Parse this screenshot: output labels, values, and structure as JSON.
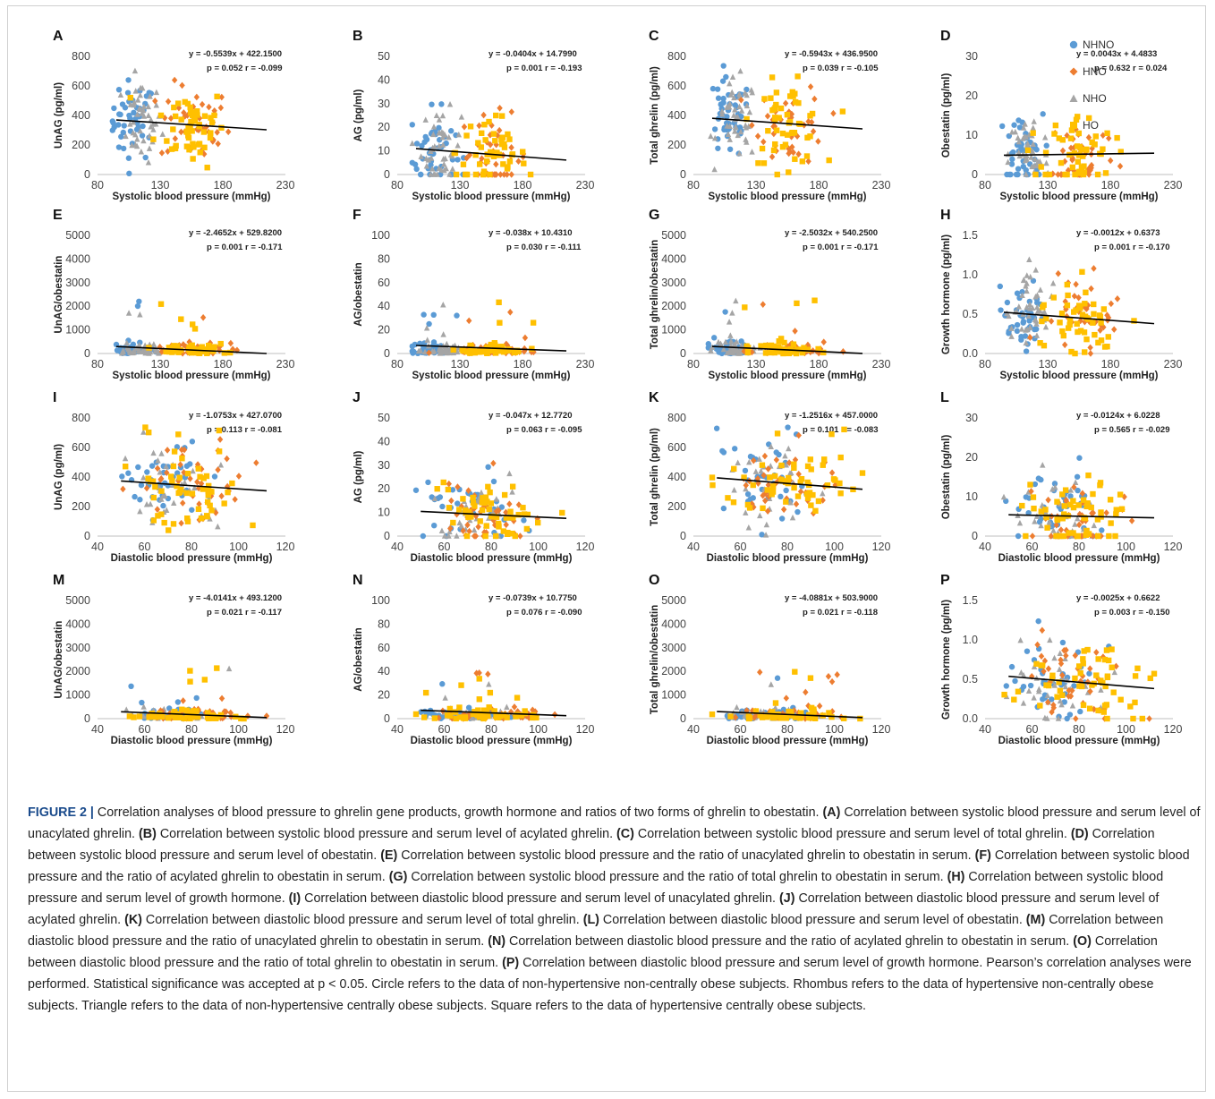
{
  "colors": {
    "NHNO": "#5b9bd5",
    "HNO": "#ed7d31",
    "NHO": "#a5a5a5",
    "HO": "#ffc000",
    "trendline": "#000000"
  },
  "legend": [
    {
      "key": "NHNO",
      "label": "NHNO",
      "marker": "circle"
    },
    {
      "key": "HNO",
      "label": "HNO",
      "marker": "diamond"
    },
    {
      "key": "NHO",
      "label": "NHO",
      "marker": "triangle"
    },
    {
      "key": "HO",
      "label": "HO",
      "marker": "square"
    }
  ],
  "chart_data": [
    {
      "panel": "A",
      "type": "scatter",
      "xlabel": "Systolic blood pressure (mmHg)",
      "ylabel": "UnAG (pg/ml)",
      "xlim": [
        80,
        230
      ],
      "xticks": [
        80,
        130,
        180,
        230
      ],
      "ylim": [
        0,
        800
      ],
      "yticks": [
        0,
        200,
        400,
        600,
        800
      ],
      "equation": "y = -0.5539x + 422.1500",
      "stats": "p = 0.052 r = -0.099",
      "slope": -0.5539,
      "intercept": 422.15,
      "fit_x": [
        95,
        215
      ]
    },
    {
      "panel": "B",
      "type": "scatter",
      "xlabel": "Systolic blood pressure (mmHg)",
      "ylabel": "AG (pg/ml)",
      "xlim": [
        80,
        230
      ],
      "xticks": [
        80,
        130,
        180,
        230
      ],
      "ylim": [
        0,
        50
      ],
      "yticks": [
        0,
        10,
        20,
        30,
        40,
        50
      ],
      "equation": "y = -0.0404x + 14.7990",
      "stats": "p = 0.001 r = -0.193",
      "slope": -0.0404,
      "intercept": 14.799,
      "fit_x": [
        95,
        215
      ]
    },
    {
      "panel": "C",
      "type": "scatter",
      "xlabel": "Systolic blood pressure (mmHg)",
      "ylabel": "Total ghrelin (pg/ml)",
      "xlim": [
        80,
        230
      ],
      "xticks": [
        80,
        130,
        180,
        230
      ],
      "ylim": [
        0,
        800
      ],
      "yticks": [
        0,
        200,
        400,
        600,
        800
      ],
      "equation": "y = -0.5943x + 436.9500",
      "stats": "p = 0.039 r = -0.105",
      "slope": -0.5943,
      "intercept": 436.95,
      "fit_x": [
        95,
        215
      ]
    },
    {
      "panel": "D",
      "type": "scatter",
      "xlabel": "Systolic blood pressure (mmHg)",
      "ylabel": "Obestatin (pg/ml)",
      "xlim": [
        80,
        230
      ],
      "xticks": [
        80,
        130,
        180,
        230
      ],
      "ylim": [
        0,
        30
      ],
      "yticks": [
        0,
        10,
        20,
        30
      ],
      "equation": "y = 0.0043x + 4.4833",
      "stats": "p = 0.632 r = 0.024",
      "slope": 0.0043,
      "intercept": 4.4833,
      "fit_x": [
        95,
        215
      ]
    },
    {
      "panel": "E",
      "type": "scatter",
      "xlabel": "Systolic blood pressure (mmHg)",
      "ylabel": "UnAG/obestatin",
      "xlim": [
        80,
        230
      ],
      "xticks": [
        80,
        130,
        180,
        230
      ],
      "ylim": [
        0,
        5000
      ],
      "yticks": [
        0,
        1000,
        2000,
        3000,
        4000,
        5000
      ],
      "equation": "y = -2.4652x + 529.8200",
      "stats": "p = 0.001 r = -0.171",
      "slope": -2.4652,
      "intercept": 529.82,
      "fit_x": [
        95,
        215
      ]
    },
    {
      "panel": "F",
      "type": "scatter",
      "xlabel": "Systolic blood pressure (mmHg)",
      "ylabel": "AG/obestatin",
      "xlim": [
        80,
        230
      ],
      "xticks": [
        80,
        130,
        180,
        230
      ],
      "ylim": [
        0,
        100
      ],
      "yticks": [
        0,
        20,
        40,
        60,
        80,
        100
      ],
      "equation": "y = -0.038x + 10.4310",
      "stats": "p = 0.030 r = -0.111",
      "slope": -0.038,
      "intercept": 10.431,
      "fit_x": [
        95,
        215
      ]
    },
    {
      "panel": "G",
      "type": "scatter",
      "xlabel": "Systolic blood pressure (mmHg)",
      "ylabel": "Total ghrelin/obestatin",
      "xlim": [
        80,
        230
      ],
      "xticks": [
        80,
        130,
        180,
        230
      ],
      "ylim": [
        0,
        5000
      ],
      "yticks": [
        0,
        1000,
        2000,
        3000,
        4000,
        5000
      ],
      "equation": "y = -2.5032x + 540.2500",
      "stats": "p = 0.001 r = -0.171",
      "slope": -2.5032,
      "intercept": 540.25,
      "fit_x": [
        95,
        215
      ]
    },
    {
      "panel": "H",
      "type": "scatter",
      "xlabel": "Systolic blood pressure (mmHg)",
      "ylabel": "Growth hormone (pg/ml)",
      "xlim": [
        80,
        230
      ],
      "xticks": [
        80,
        130,
        180,
        230
      ],
      "ylim": [
        0,
        1.5
      ],
      "yticks": [
        0.0,
        0.5,
        1.0,
        1.5
      ],
      "ytick_decimals": 1,
      "equation": "y = -0.0012x + 0.6373",
      "stats": "p = 0.001 r = -0.170",
      "slope": -0.0012,
      "intercept": 0.6373,
      "fit_x": [
        95,
        215
      ]
    },
    {
      "panel": "I",
      "type": "scatter",
      "xlabel": "Diastolic blood pressure (mmHg)",
      "ylabel": "UnAG (pg/ml)",
      "xlim": [
        40,
        120
      ],
      "xticks": [
        40,
        60,
        80,
        100,
        120
      ],
      "ylim": [
        0,
        800
      ],
      "yticks": [
        0,
        200,
        400,
        600,
        800
      ],
      "equation": "y = -1.0753x + 427.0700",
      "stats": "p = 0.113 r = -0.081",
      "slope": -1.0753,
      "intercept": 427.07,
      "fit_x": [
        50,
        112
      ]
    },
    {
      "panel": "J",
      "type": "scatter",
      "xlabel": "Diastolic blood pressure (mmHg)",
      "ylabel": "AG (pg/ml)",
      "xlim": [
        40,
        120
      ],
      "xticks": [
        40,
        60,
        80,
        100,
        120
      ],
      "ylim": [
        0,
        50
      ],
      "yticks": [
        0,
        10,
        20,
        30,
        40,
        50
      ],
      "equation": "y = -0.047x + 12.7720",
      "stats": "p = 0.063 r = -0.095",
      "slope": -0.047,
      "intercept": 12.772,
      "fit_x": [
        50,
        112
      ]
    },
    {
      "panel": "K",
      "type": "scatter",
      "xlabel": "Diastolic blood pressure (mmHg)",
      "ylabel": "Total ghrelin (pg/ml)",
      "xlim": [
        40,
        120
      ],
      "xticks": [
        40,
        60,
        80,
        100,
        120
      ],
      "ylim": [
        0,
        800
      ],
      "yticks": [
        0,
        200,
        400,
        600,
        800
      ],
      "equation": "y = -1.2516x + 457.0000",
      "stats": "p = 0.101 r = -0.083",
      "slope": -1.2516,
      "intercept": 457.0,
      "fit_x": [
        50,
        112
      ]
    },
    {
      "panel": "L",
      "type": "scatter",
      "xlabel": "Diastolic blood pressure (mmHg)",
      "ylabel": "Obestatin (pg/ml)",
      "xlim": [
        40,
        120
      ],
      "xticks": [
        40,
        60,
        80,
        100,
        120
      ],
      "ylim": [
        0,
        30
      ],
      "yticks": [
        0,
        10,
        20,
        30
      ],
      "equation": "y = -0.0124x + 6.0228",
      "stats": "p = 0.565 r = -0.029",
      "slope": -0.0124,
      "intercept": 6.0228,
      "fit_x": [
        50,
        112
      ]
    },
    {
      "panel": "M",
      "type": "scatter",
      "xlabel": "Diastolic blood pressure (mmHg)",
      "ylabel": "UnAG/obestatin",
      "xlim": [
        40,
        120
      ],
      "xticks": [
        40,
        60,
        80,
        100,
        120
      ],
      "ylim": [
        0,
        5000
      ],
      "yticks": [
        0,
        1000,
        2000,
        3000,
        4000,
        5000
      ],
      "equation": "y = -4.0141x + 493.1200",
      "stats": "p = 0.021 r = -0.117",
      "slope": -4.0141,
      "intercept": 493.12,
      "fit_x": [
        50,
        112
      ]
    },
    {
      "panel": "N",
      "type": "scatter",
      "xlabel": "Diastolic blood pressure (mmHg)",
      "ylabel": "AG/obestatin",
      "xlim": [
        40,
        120
      ],
      "xticks": [
        40,
        60,
        80,
        100,
        120
      ],
      "ylim": [
        0,
        100
      ],
      "yticks": [
        0,
        20,
        40,
        60,
        80,
        100
      ],
      "equation": "y = -0.0739x + 10.7750",
      "stats": "p = 0.076 r = -0.090",
      "slope": -0.0739,
      "intercept": 10.775,
      "fit_x": [
        50,
        112
      ]
    },
    {
      "panel": "O",
      "type": "scatter",
      "xlabel": "Diastolic blood pressure (mmHg)",
      "ylabel": "Total ghrelin/obestatin",
      "xlim": [
        40,
        120
      ],
      "xticks": [
        40,
        60,
        80,
        100,
        120
      ],
      "ylim": [
        0,
        5000
      ],
      "yticks": [
        0,
        1000,
        2000,
        3000,
        4000,
        5000
      ],
      "equation": "y = -4.0881x + 503.9000",
      "stats": "p = 0.021 r = -0.118",
      "slope": -4.0881,
      "intercept": 503.9,
      "fit_x": [
        50,
        112
      ]
    },
    {
      "panel": "P",
      "type": "scatter",
      "xlabel": "Diastolic blood pressure (mmHg)",
      "ylabel": "Growth hormone (pg/ml)",
      "xlim": [
        40,
        120
      ],
      "xticks": [
        40,
        60,
        80,
        100,
        120
      ],
      "ylim": [
        0,
        1.5
      ],
      "yticks": [
        0.0,
        0.5,
        1.0,
        1.5
      ],
      "ytick_decimals": 1,
      "equation": "y = -0.0025x + 0.6622",
      "stats": "p = 0.003 r = -0.150",
      "slope": -0.0025,
      "intercept": 0.6622,
      "fit_x": [
        50,
        112
      ]
    }
  ],
  "caption": {
    "figure_label": "FIGURE 2 |",
    "intro": " Correlation analyses of blood pressure to ghrelin gene products, growth hormone and ratios of two forms of ghrelin to obestatin. ",
    "items": [
      {
        "tag": "(A)",
        "text": " Correlation between systolic blood pressure and serum level of unacylated ghrelin. "
      },
      {
        "tag": "(B)",
        "text": " Correlation between systolic blood pressure and serum level of acylated ghrelin. "
      },
      {
        "tag": "(C)",
        "text": " Correlation between systolic blood pressure and serum level of total ghrelin. "
      },
      {
        "tag": "(D)",
        "text": " Correlation between systolic blood pressure and serum level of obestatin. "
      },
      {
        "tag": "(E)",
        "text": " Correlation between systolic blood pressure and the ratio of unacylated ghrelin to obestatin in serum. "
      },
      {
        "tag": "(F)",
        "text": " Correlation between systolic blood pressure and the ratio of acylated ghrelin to obestatin in serum. "
      },
      {
        "tag": "(G)",
        "text": " Correlation between systolic blood pressure and the ratio of total ghrelin to obestatin in serum. "
      },
      {
        "tag": "(H)",
        "text": " Correlation between systolic blood pressure and serum level of growth hormone. "
      },
      {
        "tag": "(I)",
        "text": " Correlation between diastolic blood pressure and serum level of unacylated ghrelin. "
      },
      {
        "tag": "(J)",
        "text": " Correlation between diastolic blood pressure and serum level of acylated ghrelin. "
      },
      {
        "tag": "(K)",
        "text": " Correlation between diastolic blood pressure and serum level of total ghrelin. "
      },
      {
        "tag": "(L)",
        "text": " Correlation between diastolic blood pressure and serum level of obestatin. "
      },
      {
        "tag": "(M)",
        "text": " Correlation between diastolic blood pressure and the ratio of unacylated ghrelin to obestatin in serum. "
      },
      {
        "tag": "(N)",
        "text": " Correlation between diastolic blood pressure and the ratio of acylated ghrelin to obestatin in serum. "
      },
      {
        "tag": "(O)",
        "text": " Correlation between diastolic blood pressure and the ratio of total ghrelin to obestatin in serum. "
      },
      {
        "tag": "(P)",
        "text": " Correlation between diastolic blood pressure and serum level of growth hormone. "
      }
    ],
    "outro": "Pearson’s correlation analyses were performed. Statistical significance was accepted at p < 0.05. Circle refers to the data of non-hypertensive non-centrally obese subjects. Rhombus refers to the data of hypertensive non-centrally obese subjects. Triangle refers to the data of non-hypertensive centrally obese subjects. Square refers to the data of hypertensive centrally obese subjects."
  }
}
